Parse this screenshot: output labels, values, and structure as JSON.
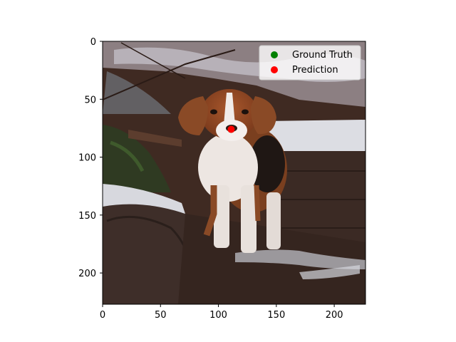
{
  "chart_data": {
    "type": "scatter",
    "background": "photo",
    "image_extent": {
      "x": [
        0,
        227
      ],
      "y": [
        227,
        0
      ]
    },
    "xlim": [
      0,
      227
    ],
    "ylim": [
      227,
      0
    ],
    "y_inverted": true,
    "grid": false,
    "x_ticks": [
      0,
      50,
      100,
      150,
      200
    ],
    "y_ticks": [
      0,
      50,
      100,
      150,
      200
    ],
    "title": "",
    "xlabel": "",
    "ylabel": "",
    "legend": {
      "placement": "top-right",
      "entries": [
        {
          "label": "Ground Truth",
          "color": "#008000"
        },
        {
          "label": "Prediction",
          "color": "#ff0000"
        }
      ]
    },
    "series": [
      {
        "name": "Ground Truth",
        "color": "#008000",
        "points": [
          [
            111,
            76
          ]
        ]
      },
      {
        "name": "Prediction",
        "color": "#ff0000",
        "points": [
          [
            111,
            76
          ]
        ]
      }
    ]
  },
  "photo_icon": "beagle-in-snowy-forest-photo"
}
